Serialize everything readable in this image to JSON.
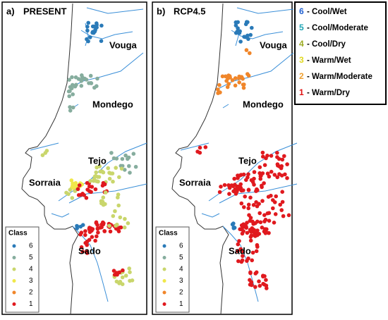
{
  "panels": [
    {
      "label": "a)",
      "title": "PRESENT",
      "places": [
        "Vouga",
        "Mondego",
        "Tejo",
        "Sorraia",
        "Sado"
      ],
      "legend_title": "Class"
    },
    {
      "label": "b)",
      "title": "RCP4.5",
      "places": [
        "Vouga",
        "Mondego",
        "Tejo",
        "Sorraia",
        "Sado"
      ],
      "legend_title": "Class"
    }
  ],
  "classes": [
    {
      "number": "6",
      "name": "- Cool/Wet",
      "color": "#1f5fd0",
      "dot": "#2a7ab8"
    },
    {
      "number": "5",
      "name": "- Cool/Moderate",
      "color": "#1fa5b5",
      "dot": "#86ad9e"
    },
    {
      "number": "4",
      "name": "- Cool/Dry",
      "color": "#9aaa20",
      "dot": "#c9d66c"
    },
    {
      "number": "3",
      "name": "- Warm/Wet",
      "color": "#e0d820",
      "dot": "#f0e84a"
    },
    {
      "number": "2",
      "name": "- Warm/Moderate",
      "color": "#f0a030",
      "dot": "#f0862a"
    },
    {
      "number": "1",
      "name": "- Warm/Dry",
      "color": "#e01010",
      "dot": "#e0191e"
    }
  ]
}
